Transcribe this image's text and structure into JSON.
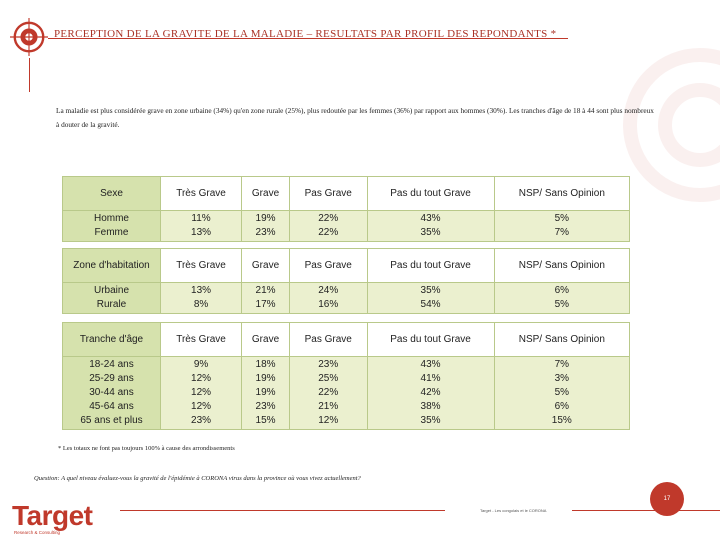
{
  "header": {
    "title": "PERCEPTION DE LA GRAVITE DE LA MALADIE – RESULTATS PAR PROFIL DES REPONDANTS *"
  },
  "intro": {
    "text": "La maladie est plus considérée grave en zone urbaine (34%) qu'en zone rurale (25%), plus redoutée par les femmes (36%) par rapport aux hommes (30%). Les tranches d'âge de 18 à 44 sont plus nombreux à douter de la gravité."
  },
  "columns": [
    "Très Grave",
    "Grave",
    "Pas Grave",
    "Pas du tout Grave",
    "NSP/ Sans Opinion"
  ],
  "tables": [
    {
      "label": "Sexe",
      "rows": [
        {
          "name": "Homme",
          "values": [
            "11%",
            "19%",
            "22%",
            "43%",
            "5%"
          ]
        },
        {
          "name": "Femme",
          "values": [
            "13%",
            "23%",
            "22%",
            "35%",
            "7%"
          ]
        }
      ]
    },
    {
      "label": "Zone d'habitation",
      "rows": [
        {
          "name": "Urbaine",
          "values": [
            "13%",
            "21%",
            "24%",
            "35%",
            "6%"
          ]
        },
        {
          "name": "Rurale",
          "values": [
            "8%",
            "17%",
            "16%",
            "54%",
            "5%"
          ]
        }
      ]
    },
    {
      "label": "Tranche d'âge",
      "rows": [
        {
          "name": "18-24 ans",
          "values": [
            "9%",
            "18%",
            "23%",
            "43%",
            "7%"
          ]
        },
        {
          "name": "25-29 ans",
          "values": [
            "12%",
            "19%",
            "25%",
            "41%",
            "3%"
          ]
        },
        {
          "name": "30-44 ans",
          "values": [
            "12%",
            "19%",
            "22%",
            "42%",
            "5%"
          ]
        },
        {
          "name": "45-64 ans",
          "values": [
            "12%",
            "23%",
            "21%",
            "38%",
            "6%"
          ]
        },
        {
          "name": "65 ans et plus",
          "values": [
            "23%",
            "15%",
            "12%",
            "35%",
            "15%"
          ]
        }
      ]
    }
  ],
  "footnote": "* Les totaux ne font pas toujours 100% à cause des arrondissements",
  "question": "Question: A quel niveau évaluez-vous la gravité de l'épidémie à CORONA virus dans la province où vous vivez actuellement?",
  "footer": {
    "brand": "Target",
    "brand_sub": "Research & Consulting",
    "source": "Target - Les congolais et le CORONA",
    "page": "17"
  },
  "colors": {
    "accent": "#c0392b",
    "row_fill": "#ebf0cf",
    "label_fill": "#d6e2ad",
    "border": "#b9c98a"
  }
}
